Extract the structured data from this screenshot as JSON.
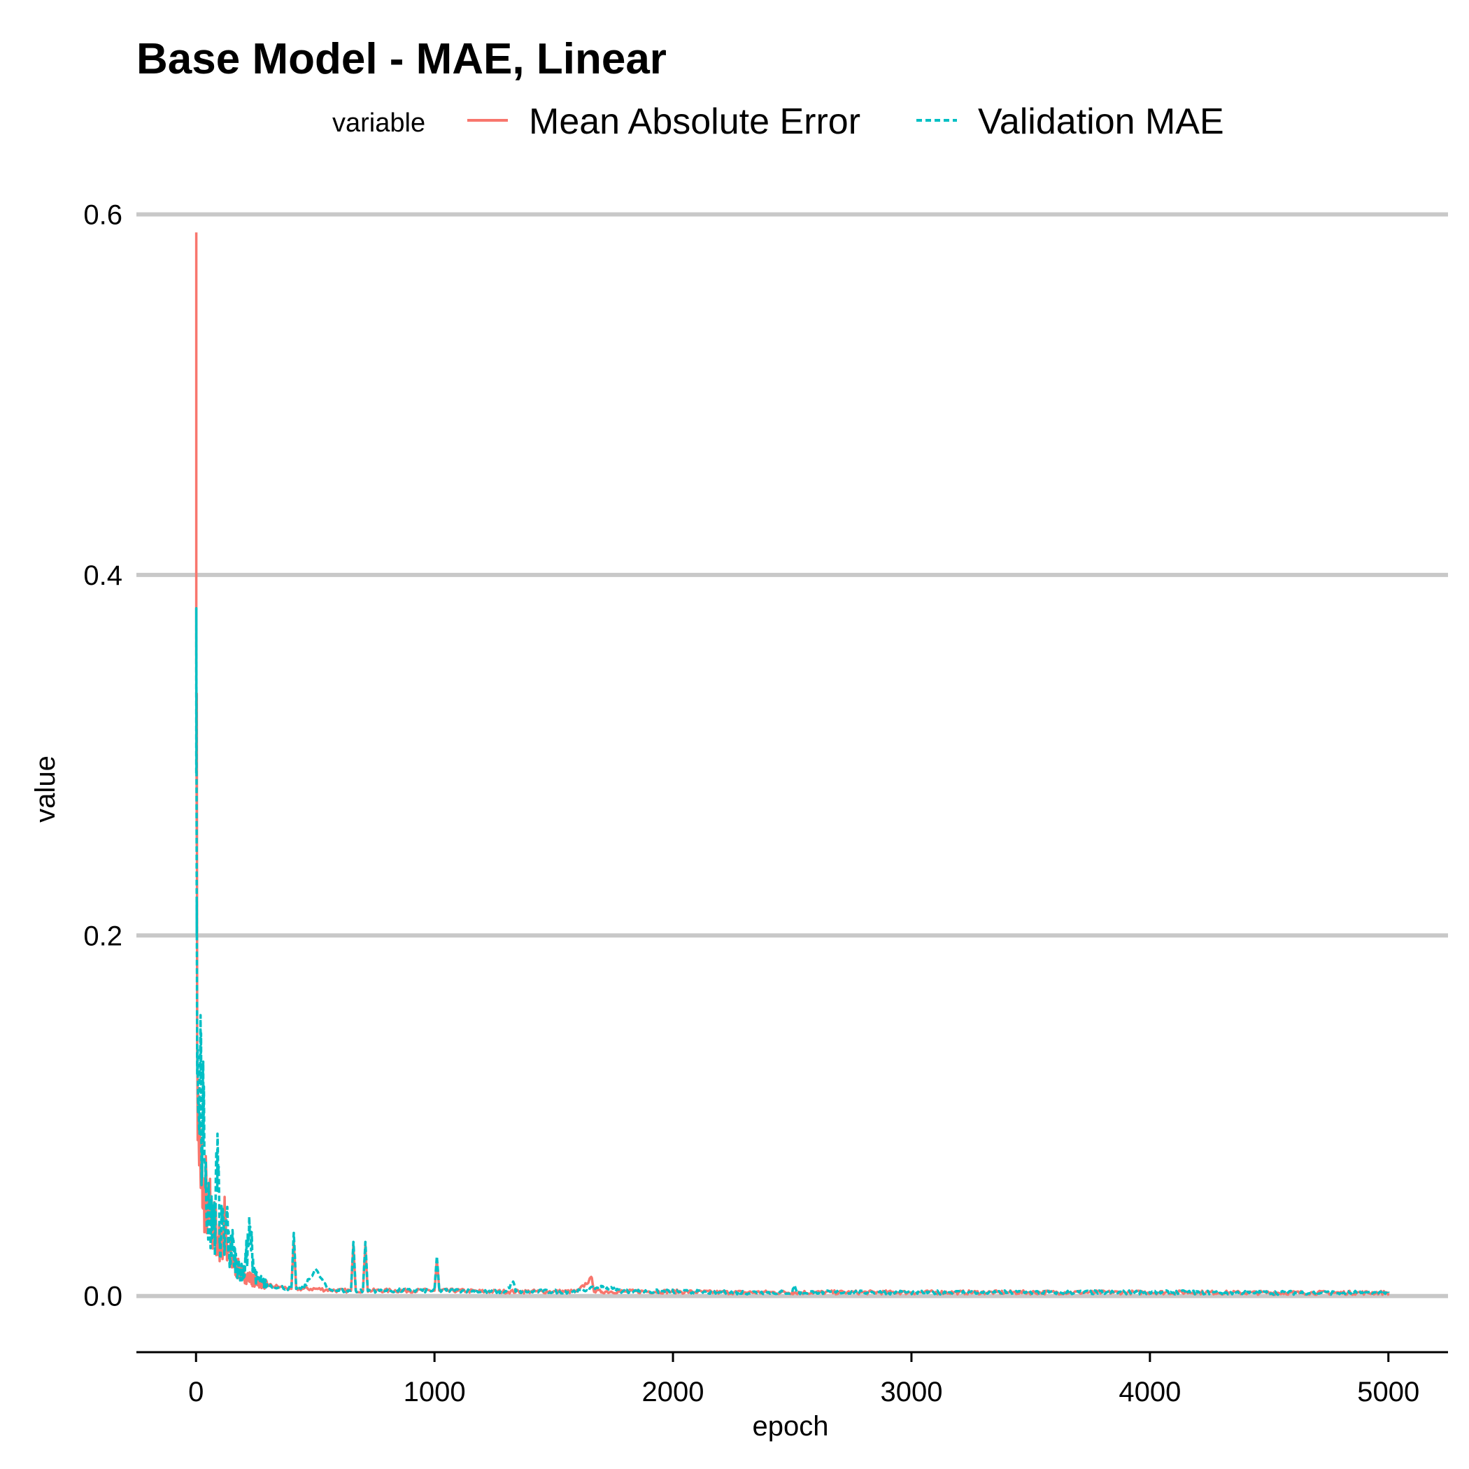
{
  "chart_data": {
    "type": "line",
    "title": "Base Model - MAE, Linear",
    "xlabel": "epoch",
    "ylabel": "value",
    "xlim": [
      -250,
      5250
    ],
    "ylim": [
      -0.03,
      0.62
    ],
    "x_ticks": [
      0,
      1000,
      2000,
      3000,
      4000,
      5000
    ],
    "x_tick_labels": [
      "0",
      "1000",
      "2000",
      "3000",
      "4000",
      "5000"
    ],
    "y_ticks": [
      0.0,
      0.2,
      0.4,
      0.6
    ],
    "y_tick_labels": [
      "0.0",
      "0.2",
      "0.4",
      "0.6"
    ],
    "grid": "horizontal-major",
    "legend": {
      "title": "variable",
      "position": "top",
      "orientation": "horizontal"
    },
    "series": [
      {
        "name": "Mean Absolute Error",
        "color": "#F8766D",
        "linetype": "solid",
        "x": [
          1,
          3,
          6,
          10,
          15,
          20,
          25,
          30,
          40,
          50,
          60,
          70,
          80,
          90,
          100,
          110,
          120,
          130,
          140,
          150,
          175,
          200,
          225,
          250,
          275,
          300,
          350,
          400,
          410,
          420,
          450,
          500,
          550,
          600,
          650,
          660,
          670,
          700,
          710,
          720,
          750,
          800,
          850,
          900,
          950,
          1000,
          1010,
          1020,
          1050,
          1100,
          1200,
          1300,
          1400,
          1500,
          1600,
          1660,
          1670,
          1700,
          1800,
          1900,
          2000,
          2200,
          2400,
          2500,
          2600,
          2800,
          3000,
          3200,
          3400,
          3600,
          3800,
          4000,
          4200,
          4400,
          4600,
          4800,
          5000
        ],
        "values": [
          0.59,
          0.25,
          0.12,
          0.09,
          0.08,
          0.06,
          0.07,
          0.05,
          0.06,
          0.04,
          0.05,
          0.035,
          0.04,
          0.03,
          0.03,
          0.025,
          0.055,
          0.02,
          0.025,
          0.02,
          0.015,
          0.012,
          0.01,
          0.008,
          0.007,
          0.006,
          0.005,
          0.004,
          0.03,
          0.004,
          0.004,
          0.004,
          0.0035,
          0.003,
          0.003,
          0.028,
          0.003,
          0.003,
          0.028,
          0.003,
          0.003,
          0.003,
          0.003,
          0.003,
          0.003,
          0.003,
          0.02,
          0.003,
          0.003,
          0.003,
          0.0025,
          0.0025,
          0.0025,
          0.0025,
          0.0025,
          0.01,
          0.0025,
          0.0025,
          0.0025,
          0.0025,
          0.0025,
          0.002,
          0.002,
          0.002,
          0.002,
          0.002,
          0.002,
          0.002,
          0.002,
          0.002,
          0.002,
          0.002,
          0.002,
          0.0018,
          0.0018,
          0.0018,
          0.0018
        ]
      },
      {
        "name": "Validation MAE",
        "color": "#00BFC4",
        "linetype": "dotted",
        "x": [
          1,
          3,
          6,
          10,
          15,
          20,
          25,
          30,
          40,
          50,
          60,
          70,
          80,
          90,
          100,
          110,
          120,
          130,
          140,
          150,
          175,
          200,
          225,
          250,
          275,
          300,
          350,
          400,
          410,
          420,
          450,
          500,
          550,
          600,
          650,
          660,
          670,
          700,
          710,
          720,
          750,
          800,
          850,
          900,
          950,
          1000,
          1010,
          1020,
          1050,
          1100,
          1200,
          1300,
          1330,
          1340,
          1400,
          1500,
          1600,
          1700,
          1800,
          1900,
          2000,
          2200,
          2400,
          2500,
          2510,
          2520,
          2600,
          2800,
          3000,
          3200,
          3400,
          3600,
          3800,
          4000,
          4200,
          4400,
          4600,
          4800,
          5000
        ],
        "values": [
          0.29,
          0.2,
          0.13,
          0.11,
          0.09,
          0.12,
          0.08,
          0.13,
          0.06,
          0.05,
          0.04,
          0.045,
          0.035,
          0.09,
          0.03,
          0.04,
          0.025,
          0.045,
          0.02,
          0.03,
          0.015,
          0.012,
          0.035,
          0.01,
          0.008,
          0.006,
          0.005,
          0.004,
          0.035,
          0.004,
          0.004,
          0.015,
          0.004,
          0.003,
          0.003,
          0.03,
          0.003,
          0.003,
          0.03,
          0.003,
          0.003,
          0.003,
          0.003,
          0.003,
          0.003,
          0.003,
          0.022,
          0.003,
          0.003,
          0.003,
          0.0025,
          0.0025,
          0.008,
          0.0025,
          0.0025,
          0.0025,
          0.0025,
          0.005,
          0.0025,
          0.0025,
          0.0025,
          0.002,
          0.002,
          0.002,
          0.006,
          0.002,
          0.002,
          0.002,
          0.002,
          0.002,
          0.002,
          0.002,
          0.002,
          0.002,
          0.002,
          0.0018,
          0.0018,
          0.0018,
          0.0018
        ]
      }
    ]
  }
}
